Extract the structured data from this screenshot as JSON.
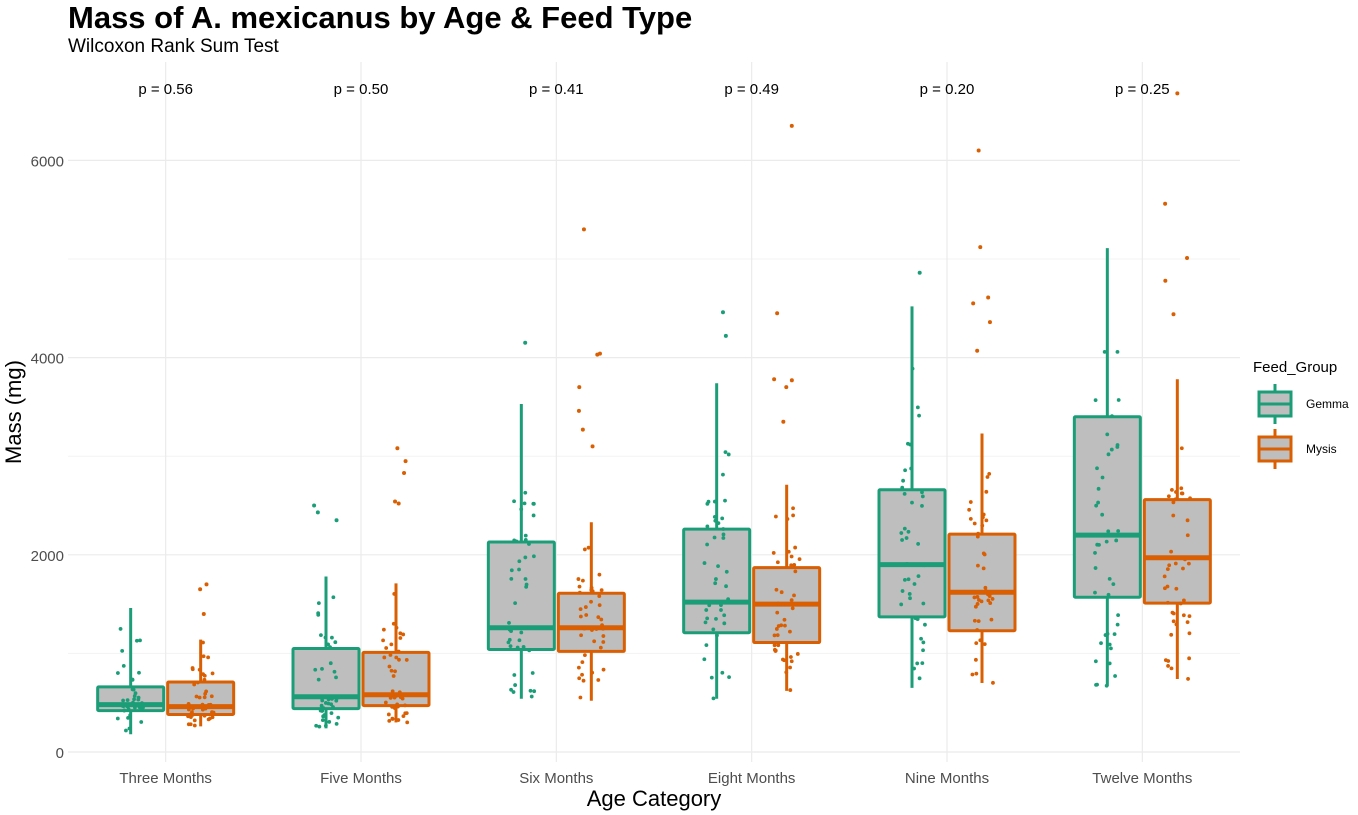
{
  "chart_data": {
    "type": "boxplot",
    "title": "Mass of A. mexicanus by Age & Feed Type",
    "subtitle": "Wilcoxon Rank Sum Test",
    "xlabel": "Age Category",
    "ylabel": "Mass (mg)",
    "ylim": [
      -100,
      7000
    ],
    "yticks": [
      0,
      2000,
      4000,
      6000
    ],
    "grid": true,
    "legend": {
      "title": "Feed_Group",
      "position": "right"
    },
    "categories": [
      "Three Months",
      "Five Months",
      "Six Months",
      "Eight Months",
      "Nine Months",
      "Twelve Months"
    ],
    "p_labels": [
      "p = 0.56",
      "p = 0.50",
      "p = 0.41",
      "p = 0.49",
      "p = 0.20",
      "p = 0.25"
    ],
    "series": [
      {
        "name": "Gemma",
        "color": "#1b9e77",
        "boxes": [
          {
            "min": 180,
            "q1": 420,
            "median": 480,
            "q3": 660,
            "max": 1460,
            "outliers": []
          },
          {
            "min": 240,
            "q1": 440,
            "median": 560,
            "q3": 1050,
            "max": 1780,
            "outliers": [
              2350,
              2430,
              2500
            ]
          },
          {
            "min": 540,
            "q1": 1040,
            "median": 1260,
            "q3": 2130,
            "max": 3530,
            "outliers": [
              4150
            ]
          },
          {
            "min": 540,
            "q1": 1210,
            "median": 1520,
            "q3": 2260,
            "max": 3740,
            "outliers": [
              4220,
              4460
            ]
          },
          {
            "min": 650,
            "q1": 1370,
            "median": 1900,
            "q3": 2660,
            "max": 4520,
            "outliers": [
              4860
            ]
          },
          {
            "min": 670,
            "q1": 1570,
            "median": 2200,
            "q3": 3400,
            "max": 5110,
            "outliers": []
          }
        ]
      },
      {
        "name": "Mysis",
        "color": "#d95f02",
        "boxes": [
          {
            "min": 260,
            "q1": 380,
            "median": 460,
            "q3": 710,
            "max": 1140,
            "outliers": [
              1400,
              1650,
              1700
            ]
          },
          {
            "min": 300,
            "q1": 470,
            "median": 580,
            "q3": 1010,
            "max": 1710,
            "outliers": [
              2520,
              2540,
              2830,
              2950,
              3080
            ]
          },
          {
            "min": 520,
            "q1": 1020,
            "median": 1260,
            "q3": 1610,
            "max": 2330,
            "outliers": [
              3100,
              3270,
              3460,
              3700,
              4030,
              4040,
              5300
            ]
          },
          {
            "min": 620,
            "q1": 1110,
            "median": 1500,
            "q3": 1870,
            "max": 2710,
            "outliers": [
              3350,
              3700,
              3770,
              3780,
              4450,
              6350
            ]
          },
          {
            "min": 700,
            "q1": 1230,
            "median": 1620,
            "q3": 2210,
            "max": 3230,
            "outliers": [
              4070,
              4360,
              4550,
              4610,
              5120,
              6100
            ]
          },
          {
            "min": 740,
            "q1": 1510,
            "median": 1970,
            "q3": 2560,
            "max": 3780,
            "outliers": [
              4440,
              4780,
              5010,
              5560,
              6680
            ]
          }
        ]
      }
    ]
  }
}
